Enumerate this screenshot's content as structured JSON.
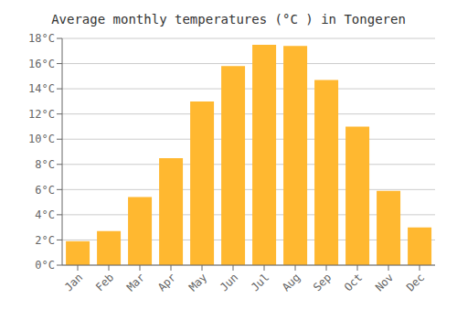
{
  "chart_data": {
    "type": "bar",
    "title": "Average monthly temperatures (°C ) in Tongeren",
    "categories": [
      "Jan",
      "Feb",
      "Mar",
      "Apr",
      "May",
      "Jun",
      "Jul",
      "Aug",
      "Sep",
      "Oct",
      "Nov",
      "Dec"
    ],
    "values": [
      1.9,
      2.7,
      5.4,
      8.5,
      13.0,
      15.8,
      17.5,
      17.4,
      14.7,
      11.0,
      5.9,
      3.0
    ],
    "color": "#FFB830",
    "ylim": [
      0,
      18
    ],
    "yticks": [
      {
        "value": 0,
        "label": "0°C"
      },
      {
        "value": 2,
        "label": "2°C"
      },
      {
        "value": 4,
        "label": "4°C"
      },
      {
        "value": 6,
        "label": "6°C"
      },
      {
        "value": 8,
        "label": "8°C"
      },
      {
        "value": 10,
        "label": "10°C"
      },
      {
        "value": 12,
        "label": "12°C"
      },
      {
        "value": 14,
        "label": "14°C"
      },
      {
        "value": 16,
        "label": "16°C"
      },
      {
        "value": 18,
        "label": "18°C"
      }
    ],
    "grid": true
  }
}
